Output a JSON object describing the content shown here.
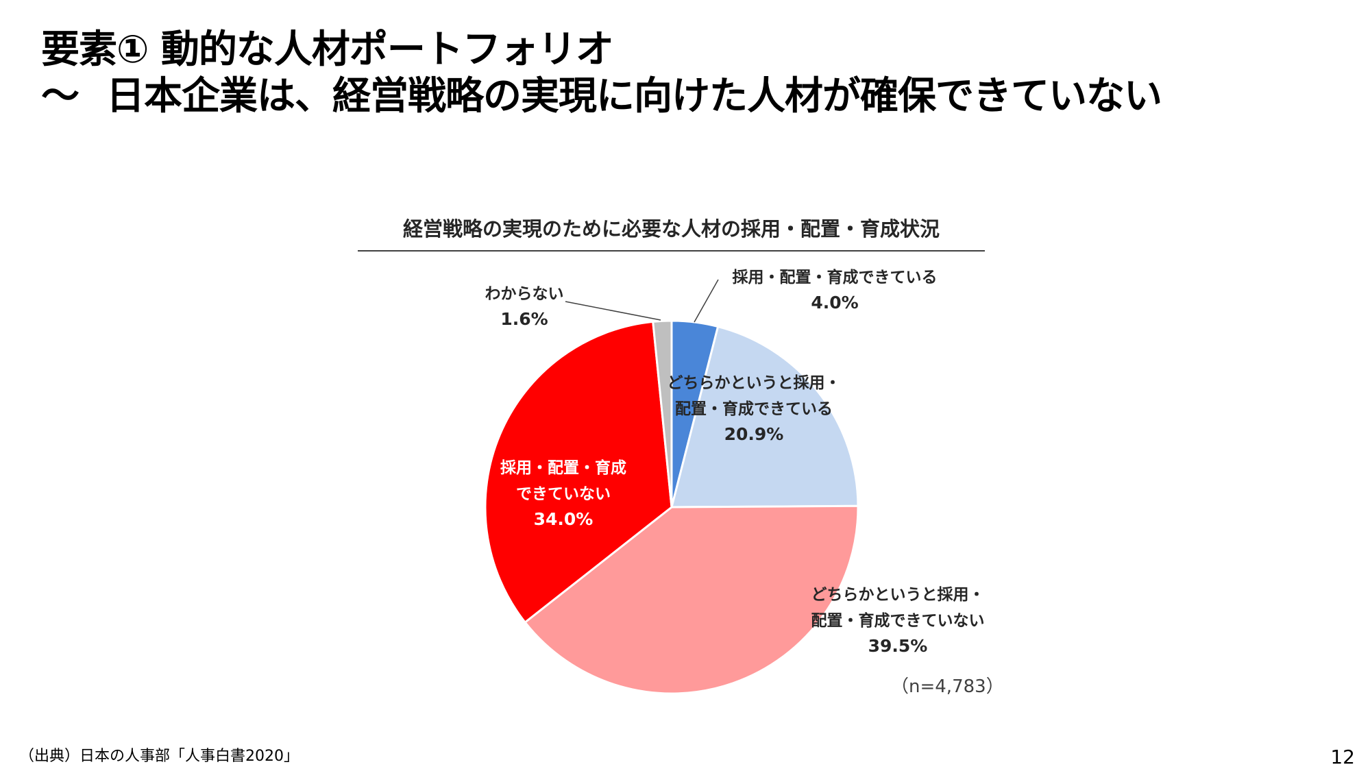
{
  "slide": {
    "title_line1": "要素① 動的な人材ポートフォリオ",
    "title_tilde": "～",
    "title_line2": "日本企業は、経営戦略の実現に向けた人材が確保できていない",
    "source": "（出典）日本の人事部「人事白書2020」",
    "page_number": "12"
  },
  "chart_data": {
    "type": "pie",
    "title": "経営戦略の実現のために必要な人材の採用・配置・育成状況",
    "sample_size": "（n=4,783）",
    "start_angle": "12 o'clock",
    "direction": "clockwise",
    "slices": [
      {
        "label_lines": [
          "採用・配置・育成できている"
        ],
        "value": 4.0,
        "value_label": "4.0%",
        "color": "#4a86d8",
        "label_color": "#262626"
      },
      {
        "label_lines": [
          "どちらかというと採用・",
          "配置・育成できている"
        ],
        "value": 20.9,
        "value_label": "20.9%",
        "color": "#c5d8f1",
        "label_color": "#262626"
      },
      {
        "label_lines": [
          "どちらかというと採用・",
          "配置・育成できていない"
        ],
        "value": 39.5,
        "value_label": "39.5%",
        "color": "#ff9a9a",
        "label_color": "#262626"
      },
      {
        "label_lines": [
          "採用・配置・育成",
          "できていない"
        ],
        "value": 34.0,
        "value_label": "34.0%",
        "color": "#ff0000",
        "label_color": "#ffffff"
      },
      {
        "label_lines": [
          "わからない"
        ],
        "value": 1.6,
        "value_label": "1.6%",
        "color": "#bfbfbf",
        "label_color": "#262626"
      }
    ]
  }
}
